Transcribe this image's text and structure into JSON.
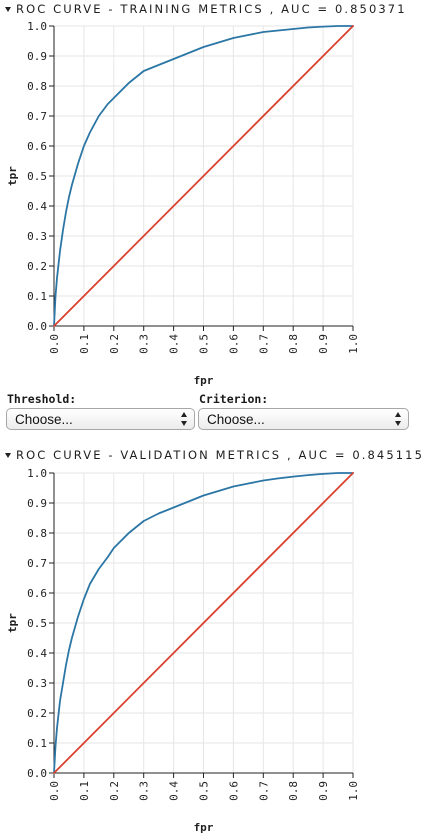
{
  "training_section": {
    "header_label": "ROC CURVE - TRAINING METRICS , AUC = 0.850371",
    "expander_icon": "caret-down-icon"
  },
  "validation_section": {
    "header_label": "ROC CURVE - VALIDATION METRICS , AUC = 0.845115",
    "expander_icon": "caret-down-icon"
  },
  "controls": {
    "threshold_label": "Threshold:",
    "threshold_value": "Choose...",
    "criterion_label": "Criterion:",
    "criterion_value": "Choose..."
  },
  "colors": {
    "roc_curve": "#2b76a5",
    "diagonal": "#d9422f",
    "grid": "#e6e6e6",
    "axis": "#222222"
  },
  "chart_data": [
    {
      "type": "line",
      "title": "",
      "xlabel": "fpr",
      "ylabel": "tpr",
      "xlim": [
        0,
        1
      ],
      "ylim": [
        0,
        1
      ],
      "grid": true,
      "x_ticks": [
        "0.0",
        "0.1",
        "0.2",
        "0.3",
        "0.4",
        "0.5",
        "0.6",
        "0.7",
        "0.8",
        "0.9",
        "1.0"
      ],
      "y_ticks": [
        "0.0",
        "0.1",
        "0.2",
        "0.3",
        "0.4",
        "0.5",
        "0.6",
        "0.7",
        "0.8",
        "0.9",
        "1.0"
      ],
      "series": [
        {
          "values_x": [
            0,
            0.005,
            0.01,
            0.02,
            0.03,
            0.04,
            0.05,
            0.06,
            0.08,
            0.1,
            0.12,
            0.15,
            0.18,
            0.2,
            0.25,
            0.3,
            0.35,
            0.4,
            0.45,
            0.5,
            0.55,
            0.6,
            0.65,
            0.7,
            0.75,
            0.8,
            0.85,
            0.9,
            0.95,
            1.0
          ],
          "values_y": [
            0,
            0.1,
            0.16,
            0.25,
            0.32,
            0.38,
            0.43,
            0.47,
            0.54,
            0.6,
            0.645,
            0.7,
            0.74,
            0.76,
            0.81,
            0.85,
            0.87,
            0.89,
            0.91,
            0.93,
            0.945,
            0.96,
            0.97,
            0.98,
            0.985,
            0.99,
            0.995,
            0.998,
            1.0,
            1.0
          ],
          "color": "#2b76a5"
        },
        {
          "values_x": [
            0,
            1
          ],
          "values_y": [
            0,
            1
          ],
          "color": "#d9422f"
        }
      ]
    },
    {
      "type": "line",
      "title": "",
      "xlabel": "fpr",
      "ylabel": "tpr",
      "xlim": [
        0,
        1
      ],
      "ylim": [
        0,
        1
      ],
      "grid": true,
      "x_ticks": [
        "0.0",
        "0.1",
        "0.2",
        "0.3",
        "0.4",
        "0.5",
        "0.6",
        "0.7",
        "0.8",
        "0.9",
        "1.0"
      ],
      "y_ticks": [
        "0.0",
        "0.1",
        "0.2",
        "0.3",
        "0.4",
        "0.5",
        "0.6",
        "0.7",
        "0.8",
        "0.9",
        "1.0"
      ],
      "series": [
        {
          "values_x": [
            0,
            0.005,
            0.01,
            0.02,
            0.03,
            0.04,
            0.05,
            0.06,
            0.08,
            0.1,
            0.12,
            0.15,
            0.18,
            0.2,
            0.25,
            0.3,
            0.35,
            0.4,
            0.45,
            0.5,
            0.55,
            0.6,
            0.65,
            0.7,
            0.75,
            0.8,
            0.85,
            0.9,
            0.95,
            1.0
          ],
          "values_y": [
            0,
            0.09,
            0.15,
            0.24,
            0.3,
            0.36,
            0.41,
            0.45,
            0.52,
            0.58,
            0.63,
            0.68,
            0.72,
            0.75,
            0.8,
            0.84,
            0.865,
            0.885,
            0.905,
            0.925,
            0.94,
            0.955,
            0.965,
            0.975,
            0.982,
            0.988,
            0.993,
            0.997,
            1.0,
            1.0
          ],
          "color": "#2b76a5"
        },
        {
          "values_x": [
            0,
            1
          ],
          "values_y": [
            0,
            1
          ],
          "color": "#d9422f"
        }
      ]
    }
  ]
}
